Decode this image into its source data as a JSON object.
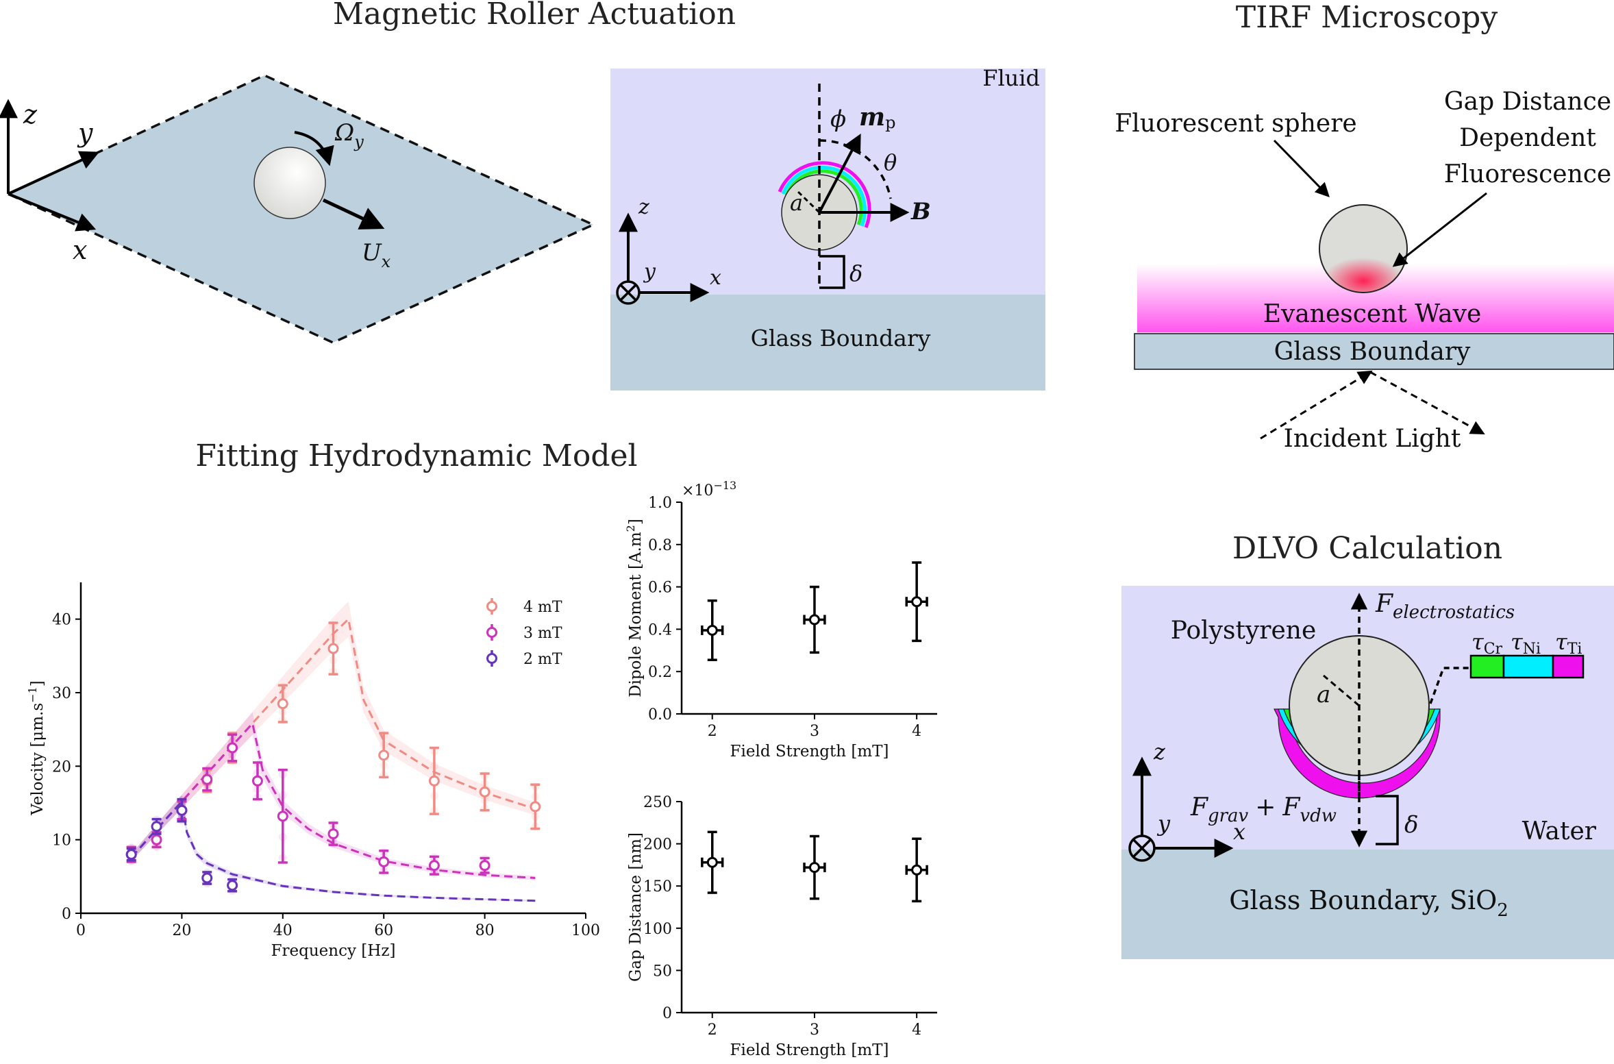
{
  "titles": {
    "roller": "Magnetic Roller Actuation",
    "tirf": "TIRF Microscopy",
    "fitting": "Fitting Hydrodynamic Model",
    "dlvo": "DLVO Calculation"
  },
  "roller_plane": {
    "axis_z": "z",
    "axis_y": "y",
    "axis_x": "x",
    "omega": "Ω",
    "omega_sub": "y",
    "velocity": "U",
    "velocity_sub": "x"
  },
  "roller_side": {
    "fluid": "Fluid",
    "glass": "Glass Boundary",
    "phi": "ϕ",
    "m": "m",
    "m_sub": "p",
    "theta": "θ",
    "B": "B",
    "a": "a",
    "delta": "δ",
    "axis_z": "z",
    "axis_y": "y",
    "axis_x": "x"
  },
  "tirf": {
    "sphere": "Fluorescent sphere",
    "gap_line1": "Gap Distance",
    "gap_line2": "Dependent",
    "gap_line3": "Fluorescence",
    "wave": "Evanescent Wave",
    "glass": "Glass Boundary",
    "light": "Incident Light"
  },
  "dlvo": {
    "force_up": "F",
    "force_up_sub": "electrostatics",
    "material": "Polystyrene",
    "tau_cr": "τ",
    "tau_cr_sub": "Cr",
    "tau_ni": "τ",
    "tau_ni_sub": "Ni",
    "tau_ti": "τ",
    "tau_ti_sub": "Ti",
    "a": "a",
    "f_grav": "F",
    "f_grav_sub": "grav",
    "plus": "+",
    "f_vdw": "F",
    "f_vdw_sub": "vdw",
    "delta": "δ",
    "water": "Water",
    "glass": "Glass Boundary, SiO",
    "glass_sub": "2",
    "axis_z": "z",
    "axis_y": "y",
    "axis_x": "x",
    "layer_colors": {
      "Cr": "#22ee22",
      "Ni": "#00eeff",
      "Ti": "#ee11ee"
    }
  },
  "chart_data": [
    {
      "type": "line",
      "xlabel": "Frequency [Hz]",
      "ylabel": "Velocity [μm.s",
      "ylabel_sup": "−1",
      "ylabel_end": "]",
      "xlim": [
        0,
        100
      ],
      "ylim": [
        0,
        45
      ],
      "xticks": [
        "0",
        "20",
        "40",
        "60",
        "80",
        "100"
      ],
      "yticks": [
        "0",
        "10",
        "20",
        "30",
        "40"
      ],
      "legend": [
        "4 mT",
        "3 mT",
        "2 mT"
      ],
      "legend_position": "top-right",
      "series": [
        {
          "name": "4 mT",
          "color": "#f08a84",
          "x": [
            10,
            15,
            20,
            25,
            30,
            40,
            50,
            60,
            70,
            80,
            90
          ],
          "y": [
            8,
            10,
            14,
            18,
            22.5,
            28.5,
            36,
            21.5,
            18,
            16.5,
            14.5
          ],
          "err": [
            1,
            1,
            1.2,
            1.5,
            2,
            2.5,
            3.5,
            3,
            4.5,
            2.5,
            3
          ],
          "fit_x": [
            10,
            20,
            30,
            40,
            50,
            53,
            56,
            60,
            70,
            80,
            90
          ],
          "fit_y": [
            7.6,
            15.2,
            22.8,
            30.4,
            38,
            40,
            29,
            23.5,
            19.2,
            16.4,
            14.2
          ]
        },
        {
          "name": "3 mT",
          "color": "#cc33bb",
          "x": [
            10,
            15,
            20,
            25,
            30,
            35,
            40,
            50,
            60,
            70,
            80
          ],
          "y": [
            8,
            10,
            14,
            18.2,
            22.5,
            18,
            13.2,
            10.8,
            7,
            6.5,
            6.5
          ],
          "err": [
            1,
            1,
            1.2,
            1.5,
            1.8,
            2.5,
            6.3,
            1.5,
            1.5,
            1.2,
            1
          ],
          "fit_x": [
            10,
            20,
            30,
            34,
            36,
            40,
            45,
            50,
            60,
            70,
            80,
            90
          ],
          "fit_y": [
            7.6,
            15.2,
            22.8,
            25.8,
            19.5,
            14.5,
            11.5,
            9.5,
            7.1,
            5.9,
            5.2,
            4.8
          ]
        },
        {
          "name": "2 mT",
          "color": "#6633bb",
          "x": [
            10,
            15,
            20,
            25,
            30
          ],
          "y": [
            8,
            11.8,
            14,
            4.8,
            3.8
          ],
          "err": [
            0.8,
            1,
            1.5,
            0.8,
            0.8
          ],
          "fit_x": [
            10,
            15,
            20,
            21,
            23,
            25,
            30,
            40,
            50,
            60,
            70,
            80,
            90
          ],
          "fit_y": [
            7.6,
            11.4,
            15.2,
            11,
            8,
            6.8,
            5.3,
            3.7,
            2.9,
            2.4,
            2.1,
            1.9,
            1.7
          ]
        }
      ]
    },
    {
      "type": "scatter",
      "xlabel": "Field Strength [mT]",
      "ylabel": "Dipole Moment [A.m",
      "ylabel_sup": "2",
      "ylabel_end": "]",
      "multiplier": "×10",
      "multiplier_sup": "−13",
      "xlim": [
        1.7,
        4.2
      ],
      "ylim": [
        0,
        1.0
      ],
      "xticks": [
        "2",
        "3",
        "4"
      ],
      "yticks": [
        "0.0",
        "0.2",
        "0.4",
        "0.6",
        "0.8",
        "1.0"
      ],
      "x": [
        2,
        3,
        4
      ],
      "y": [
        0.395,
        0.445,
        0.53
      ],
      "yerr": [
        0.14,
        0.155,
        0.185
      ],
      "xerr": [
        0.1,
        0.1,
        0.1
      ]
    },
    {
      "type": "scatter",
      "xlabel": "Field Strength [mT]",
      "ylabel": "Gap Distance [nm]",
      "xlim": [
        1.7,
        4.2
      ],
      "ylim": [
        0,
        250
      ],
      "xticks": [
        "2",
        "3",
        "4"
      ],
      "yticks": [
        "0",
        "50",
        "100",
        "150",
        "200",
        "250"
      ],
      "x": [
        2,
        3,
        4
      ],
      "y": [
        178,
        172,
        169
      ],
      "yerr": [
        36,
        37,
        37
      ],
      "xerr": [
        0.1,
        0.1,
        0.1
      ]
    }
  ]
}
